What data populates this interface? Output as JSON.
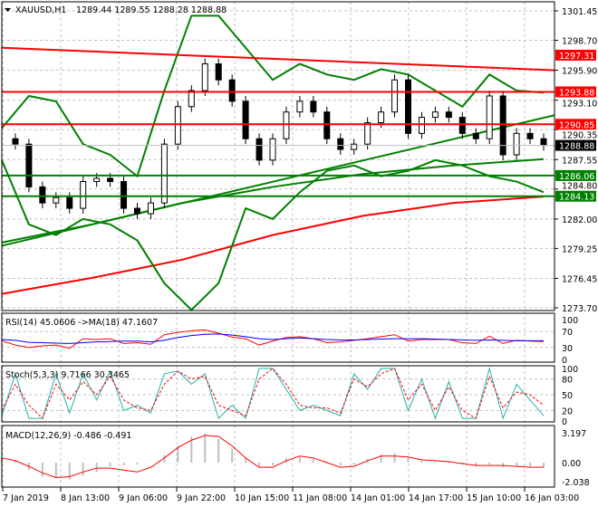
{
  "header": {
    "symbol": "XAUUSD,H1",
    "ohlc": "1289.44 1289.55 1288.28 1288.88"
  },
  "colors": {
    "resistance": "#ff0000",
    "support": "#008000",
    "current": "#000000",
    "bollinger": "#008000",
    "ma_long": "#008000",
    "ma_200": "#ff0000",
    "rsi": "#ff0000",
    "rsi_ma": "#0000ff",
    "stoch_main": "#20b2aa",
    "stoch_signal": "#ff0000",
    "macd": "#ff0000",
    "macd_hist": "#c0c0c0"
  },
  "chart_data": [
    {
      "type": "candlestick",
      "title": "XAUUSD,H1",
      "ylim": [
        1273.7,
        1301.45
      ],
      "y_ticks": [
        "1301.45",
        "1298.70",
        "1295.90",
        "1293.10",
        "1290.35",
        "1287.55",
        "1284.80",
        "1282.00",
        "1279.25",
        "1276.45",
        "1273.70"
      ],
      "x_ticks": [
        "7 Jan 2019",
        "8 Jan 13:00",
        "9 Jan 06:00",
        "9 Jan 22:00",
        "10 Jan 15:00",
        "11 Jan 08:00",
        "14 Jan 01:00",
        "14 Jan 17:00",
        "15 Jan 10:00",
        "16 Jan 03:00"
      ],
      "close": [
        1289.5,
        1289,
        1285,
        1283.5,
        1284,
        1283,
        1285.5,
        1285.8,
        1285.5,
        1283,
        1282.5,
        1283.5,
        1289,
        1292.5,
        1294,
        1296.5,
        1295,
        1293,
        1289.5,
        1287.5,
        1289.5,
        1292,
        1293,
        1292,
        1289.5,
        1288.5,
        1289,
        1291,
        1292,
        1295,
        1290,
        1291.5,
        1292,
        1291.5,
        1290,
        1289.5,
        1293.5,
        1288,
        1290,
        1289.5,
        1288.88
      ],
      "bollinger_upper": [
        1290.5,
        1293.5,
        1293,
        1289,
        1288,
        1286,
        1294,
        1301,
        1301,
        1298,
        1295,
        1296.5,
        1295.5,
        1295,
        1296,
        1295.5,
        1294,
        1292.5,
        1295.5,
        1294,
        1293.8
      ],
      "bollinger_lower": [
        1287.5,
        1281.5,
        1280.5,
        1282,
        1281.5,
        1280,
        1276,
        1273.5,
        1276,
        1283,
        1282,
        1284.5,
        1286.5,
        1287,
        1286,
        1286.5,
        1287.5,
        1287,
        1286,
        1285.5,
        1284.5
      ],
      "ma_long": [
        1279.8,
        1281.5,
        1283.5,
        1285,
        1286.2,
        1287,
        1287.6
      ],
      "ma_200": [
        1275,
        1276.5,
        1278.2,
        1280.5,
        1282.3,
        1283.5,
        1284.1
      ],
      "levels": [
        {
          "label": "1297.31",
          "kind": "resistance",
          "from": 1298.0,
          "to": 1295.9
        },
        {
          "label": "1293.88",
          "kind": "resistance",
          "from": 1293.88,
          "to": 1293.88
        },
        {
          "label": "1290.85",
          "kind": "resistance",
          "from": 1290.85,
          "to": 1290.85
        },
        {
          "label": "1288.88",
          "kind": "current",
          "from": 1288.88,
          "to": 1288.88
        },
        {
          "label": "1286.06",
          "kind": "support",
          "from": 1286.06,
          "to": 1286.06
        },
        {
          "label": "1284.13",
          "kind": "support",
          "from": 1284.13,
          "to": 1284.13
        }
      ],
      "trendline": [
        1279.5,
        1291.7
      ]
    },
    {
      "type": "line",
      "title": "RSI(14) 45.0606  ->MA(18) 47.1607",
      "ylim": [
        0,
        100
      ],
      "y_ticks": [
        "100",
        "70",
        "30",
        "0"
      ],
      "series": [
        {
          "values": [
            47,
            36,
            30,
            34,
            36,
            28,
            52,
            50,
            52,
            40,
            42,
            38,
            62,
            68,
            72,
            74,
            66,
            56,
            52,
            36,
            46,
            55,
            57,
            52,
            42,
            44,
            48,
            52,
            57,
            62,
            46,
            50,
            50,
            50,
            42,
            40,
            58,
            40,
            48,
            46,
            45
          ]
        },
        {
          "values": [
            50,
            48,
            43,
            42,
            41,
            40,
            42,
            44,
            45,
            46,
            46,
            44,
            48,
            55,
            60,
            63,
            64,
            61,
            57,
            52,
            50,
            52,
            54,
            52,
            50,
            49,
            49,
            50,
            51,
            52,
            52,
            52,
            51,
            50,
            49,
            48,
            49,
            48,
            47,
            47,
            47
          ]
        }
      ]
    },
    {
      "type": "line",
      "title": "Stoch(5,3,3) 9.7166 30.3465",
      "ylim": [
        0,
        100
      ],
      "y_ticks": [
        "100",
        "80",
        "50",
        "20",
        "0"
      ],
      "series": [
        {
          "values": [
            10,
            90,
            5,
            5,
            90,
            15,
            90,
            40,
            95,
            20,
            30,
            15,
            90,
            95,
            70,
            90,
            5,
            30,
            5,
            100,
            100,
            60,
            20,
            30,
            20,
            10,
            90,
            60,
            100,
            100,
            20,
            80,
            5,
            75,
            5,
            5,
            100,
            5,
            70,
            40,
            10
          ]
        },
        {
          "values": [
            20,
            70,
            30,
            5,
            70,
            40,
            75,
            50,
            85,
            40,
            25,
            20,
            70,
            95,
            80,
            85,
            30,
            20,
            10,
            80,
            100,
            70,
            30,
            25,
            25,
            15,
            80,
            65,
            90,
            100,
            40,
            70,
            20,
            65,
            20,
            5,
            85,
            25,
            55,
            50,
            30
          ]
        }
      ]
    },
    {
      "type": "bar+line",
      "title": "MACD(12,26,9) -0.486 -0.491",
      "ylim": [
        -2.038,
        3.197
      ],
      "y_ticks": [
        "3.197",
        "0.00",
        "-2.038"
      ],
      "histogram": [
        0.5,
        0.2,
        -0.8,
        -1.5,
        -1.6,
        -1.8,
        -1.4,
        -1.0,
        -0.4,
        -0.3,
        -0.2,
        0.0,
        0.8,
        1.8,
        2.8,
        3.1,
        2.5,
        1.5,
        0.5,
        -0.5,
        -0.3,
        0.5,
        0.6,
        0.4,
        0.1,
        -0.3,
        -0.2,
        0.4,
        0.9,
        1.0,
        0.6,
        0.2,
        0.1,
        0.2,
        -0.2,
        -0.4,
        -0.2,
        -0.5,
        -0.3,
        -0.4,
        -0.5
      ],
      "macd": [
        0.5,
        0.2,
        -0.4,
        -1.1,
        -1.6,
        -1.5,
        -1.0,
        -0.6,
        -0.6,
        -0.8,
        -1.0,
        -0.5,
        0.5,
        1.6,
        2.4,
        2.9,
        2.8,
        1.8,
        0.5,
        -0.5,
        -0.5,
        0.2,
        0.7,
        0.5,
        0.0,
        -0.5,
        -0.4,
        0.2,
        0.7,
        0.7,
        0.6,
        0.3,
        0.2,
        0.1,
        -0.1,
        -0.3,
        -0.3,
        -0.3,
        -0.4,
        -0.5,
        -0.49
      ]
    }
  ]
}
